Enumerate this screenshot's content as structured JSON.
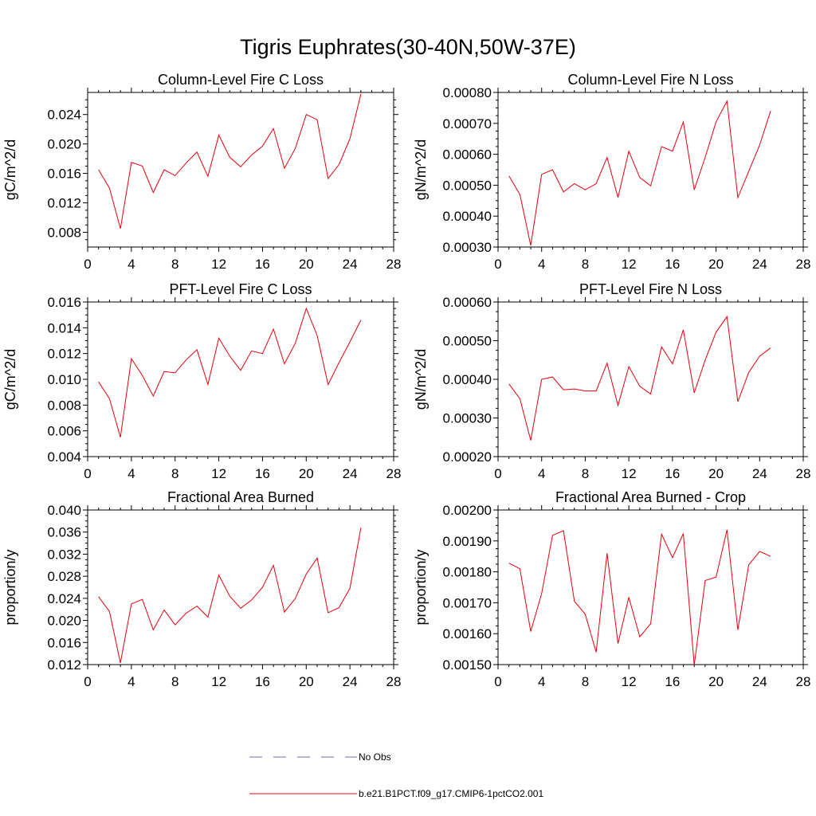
{
  "figure": {
    "title": "Tigris Euphrates(30-40N,50W-37E)"
  },
  "legend": {
    "items": [
      {
        "label": "No Obs",
        "color": "#6e6ea8",
        "style": "dashed"
      },
      {
        "label": "b.e21.B1PCT.f09_g17.CMIP6-1pctCO2.001",
        "color": "#e8000b",
        "style": "solid"
      }
    ]
  },
  "chart_data": [
    {
      "type": "line",
      "title": "Column-Level Fire C Loss",
      "ylabel": "gC/m^2/d",
      "xlim": [
        0,
        28
      ],
      "ylim": [
        0.006,
        0.027
      ],
      "xticks": [
        "0",
        "4",
        "8",
        "12",
        "16",
        "20",
        "24",
        "28"
      ],
      "yticks": [
        "0.008",
        "0.012",
        "0.016",
        "0.020",
        "0.024"
      ],
      "series": [
        {
          "name": "b.e21.B1PCT.f09_g17.CMIP6-1pctCO2.001",
          "color": "#e8000b",
          "x": [
            1,
            2,
            3,
            4,
            5,
            6,
            7,
            8,
            9,
            10,
            11,
            12,
            13,
            14,
            15,
            16,
            17,
            18,
            19,
            20,
            21,
            22,
            23,
            24,
            25
          ],
          "values": [
            0.0165,
            0.014,
            0.0085,
            0.0175,
            0.017,
            0.0134,
            0.0165,
            0.0157,
            0.0174,
            0.0189,
            0.0156,
            0.0212,
            0.0182,
            0.0169,
            0.0185,
            0.0197,
            0.0221,
            0.0167,
            0.0194,
            0.024,
            0.0233,
            0.0153,
            0.0172,
            0.0207,
            0.0268
          ]
        }
      ]
    },
    {
      "type": "line",
      "title": "Column-Level Fire N Loss",
      "ylabel": "gN/m^2/d",
      "xlim": [
        0,
        28
      ],
      "ylim": [
        0.0003,
        0.0008
      ],
      "xticks": [
        "0",
        "4",
        "8",
        "12",
        "16",
        "20",
        "24",
        "28"
      ],
      "yticks": [
        "0.00030",
        "0.00040",
        "0.00050",
        "0.00060",
        "0.00070",
        "0.00080"
      ],
      "series": [
        {
          "name": "b.e21.B1PCT.f09_g17.CMIP6-1pctCO2.001",
          "color": "#e8000b",
          "x": [
            1,
            2,
            3,
            4,
            5,
            6,
            7,
            8,
            9,
            10,
            11,
            12,
            13,
            14,
            15,
            16,
            17,
            18,
            19,
            20,
            21,
            22,
            23,
            24,
            25
          ],
          "values": [
            0.00053,
            0.00047,
            0.000305,
            0.000535,
            0.00055,
            0.000478,
            0.000505,
            0.000485,
            0.000505,
            0.00059,
            0.00046,
            0.00061,
            0.000525,
            0.000498,
            0.000625,
            0.00061,
            0.000705,
            0.000485,
            0.00059,
            0.000705,
            0.000772,
            0.00046,
            0.000545,
            0.00063,
            0.00074
          ]
        }
      ]
    },
    {
      "type": "line",
      "title": "PFT-Level Fire C Loss",
      "ylabel": "gC/m^2/d",
      "xlim": [
        0,
        28
      ],
      "ylim": [
        0.004,
        0.016
      ],
      "xticks": [
        "0",
        "4",
        "8",
        "12",
        "16",
        "20",
        "24",
        "28"
      ],
      "yticks": [
        "0.004",
        "0.006",
        "0.008",
        "0.010",
        "0.012",
        "0.014",
        "0.016"
      ],
      "series": [
        {
          "name": "b.e21.B1PCT.f09_g17.CMIP6-1pctCO2.001",
          "color": "#e8000b",
          "x": [
            1,
            2,
            3,
            4,
            5,
            6,
            7,
            8,
            9,
            10,
            11,
            12,
            13,
            14,
            15,
            16,
            17,
            18,
            19,
            20,
            21,
            22,
            23,
            24,
            25
          ],
          "values": [
            0.0098,
            0.0085,
            0.0055,
            0.0116,
            0.0103,
            0.0087,
            0.0106,
            0.0105,
            0.0115,
            0.0123,
            0.0096,
            0.0132,
            0.0118,
            0.0107,
            0.0122,
            0.012,
            0.0139,
            0.0112,
            0.0128,
            0.0155,
            0.0134,
            0.0096,
            0.0113,
            0.0129,
            0.0146
          ]
        }
      ]
    },
    {
      "type": "line",
      "title": "PFT-Level Fire N Loss",
      "ylabel": "gN/m^2/d",
      "xlim": [
        0,
        28
      ],
      "ylim": [
        0.0002,
        0.0006
      ],
      "xticks": [
        "0",
        "4",
        "8",
        "12",
        "16",
        "20",
        "24",
        "28"
      ],
      "yticks": [
        "0.00020",
        "0.00030",
        "0.00040",
        "0.00050",
        "0.00060"
      ],
      "series": [
        {
          "name": "b.e21.B1PCT.f09_g17.CMIP6-1pctCO2.001",
          "color": "#e8000b",
          "x": [
            1,
            2,
            3,
            4,
            5,
            6,
            7,
            8,
            9,
            10,
            11,
            12,
            13,
            14,
            15,
            16,
            17,
            18,
            19,
            20,
            21,
            22,
            23,
            24,
            25
          ],
          "values": [
            0.000388,
            0.00035,
            0.000242,
            0.0004,
            0.000406,
            0.000373,
            0.000375,
            0.00037,
            0.00037,
            0.000442,
            0.000332,
            0.000433,
            0.000382,
            0.000362,
            0.000484,
            0.00044,
            0.000528,
            0.000365,
            0.00045,
            0.000522,
            0.000562,
            0.000342,
            0.000418,
            0.00046,
            0.000481
          ]
        }
      ]
    },
    {
      "type": "line",
      "title": "Fractional Area Burned",
      "ylabel": "proportion/y",
      "xlim": [
        0,
        28
      ],
      "ylim": [
        0.012,
        0.04
      ],
      "xticks": [
        "0",
        "4",
        "8",
        "12",
        "16",
        "20",
        "24",
        "28"
      ],
      "yticks": [
        "0.012",
        "0.016",
        "0.020",
        "0.024",
        "0.028",
        "0.032",
        "0.036",
        "0.040"
      ],
      "series": [
        {
          "name": "b.e21.B1PCT.f09_g17.CMIP6-1pctCO2.001",
          "color": "#e8000b",
          "x": [
            1,
            2,
            3,
            4,
            5,
            6,
            7,
            8,
            9,
            10,
            11,
            12,
            13,
            14,
            15,
            16,
            17,
            18,
            19,
            20,
            21,
            22,
            23,
            24,
            25
          ],
          "values": [
            0.0243,
            0.0216,
            0.0123,
            0.023,
            0.0238,
            0.0183,
            0.0219,
            0.0192,
            0.0213,
            0.0226,
            0.0206,
            0.0282,
            0.0244,
            0.0222,
            0.0237,
            0.026,
            0.03,
            0.0215,
            0.024,
            0.0284,
            0.0313,
            0.0214,
            0.0223,
            0.0258,
            0.0368
          ]
        }
      ]
    },
    {
      "type": "line",
      "title": "Fractional Area Burned - Crop",
      "ylabel": "proportion/y",
      "xlim": [
        0,
        28
      ],
      "ylim": [
        0.0015,
        0.002
      ],
      "xticks": [
        "0",
        "4",
        "8",
        "12",
        "16",
        "20",
        "24",
        "28"
      ],
      "yticks": [
        "0.00150",
        "0.00160",
        "0.00170",
        "0.00180",
        "0.00190",
        "0.00200"
      ],
      "series": [
        {
          "name": "b.e21.B1PCT.f09_g17.CMIP6-1pctCO2.001",
          "color": "#e8000b",
          "x": [
            1,
            2,
            3,
            4,
            5,
            6,
            7,
            8,
            9,
            10,
            11,
            12,
            13,
            14,
            15,
            16,
            17,
            18,
            19,
            20,
            21,
            22,
            23,
            24,
            25
          ],
          "values": [
            0.001828,
            0.00181,
            0.001607,
            0.00173,
            0.001918,
            0.001933,
            0.001705,
            0.001663,
            0.00154,
            0.00186,
            0.001568,
            0.001718,
            0.00159,
            0.001632,
            0.001922,
            0.001846,
            0.001924,
            0.001498,
            0.001772,
            0.001783,
            0.001936,
            0.001612,
            0.001823,
            0.001866,
            0.00185
          ]
        }
      ]
    }
  ]
}
